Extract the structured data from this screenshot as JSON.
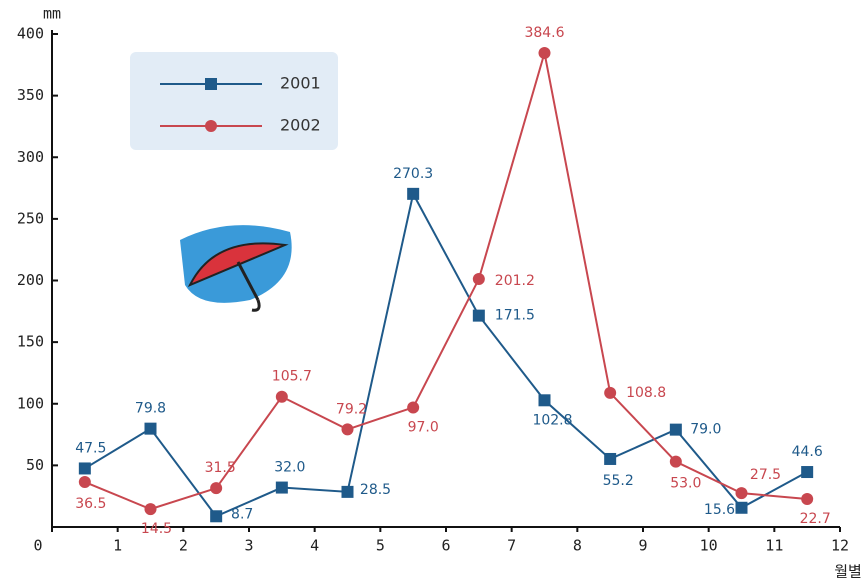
{
  "chart_data": {
    "type": "line",
    "y_unit": "mm",
    "x_label": "월별",
    "x": [
      0.5,
      1.5,
      2.5,
      3.5,
      4.5,
      5.5,
      6.5,
      7.5,
      8.5,
      9.5,
      10.5,
      11.5
    ],
    "series": [
      {
        "name": "2001",
        "color": "#1f5a8a",
        "marker": "square",
        "values": [
          47.5,
          79.8,
          8.7,
          32.0,
          28.5,
          270.3,
          171.5,
          102.8,
          55.2,
          79.0,
          15.6,
          44.6
        ],
        "value_labels": [
          "47.5",
          "79.8",
          "8.7",
          "32.0",
          "28.5",
          "270.3",
          "171.5",
          "102.8",
          "55.2",
          "79.0",
          "15.6",
          "44.6"
        ]
      },
      {
        "name": "2002",
        "color": "#c8474f",
        "marker": "circle",
        "values": [
          36.5,
          14.5,
          31.5,
          105.7,
          79.2,
          97.0,
          201.2,
          384.6,
          108.8,
          53.0,
          27.5,
          22.7
        ],
        "value_labels": [
          "36.5",
          "14.5",
          "31.5",
          "105.7",
          "79.2",
          "97.0",
          "201.2",
          "384.6",
          "108.8",
          "53.0",
          "27.5",
          "22.7"
        ]
      }
    ],
    "xlim": [
      0,
      12
    ],
    "xticks": [
      0,
      1,
      2,
      3,
      4,
      5,
      6,
      7,
      8,
      9,
      10,
      11,
      12
    ],
    "ylim": [
      0,
      400
    ],
    "yticks": [
      50,
      100,
      150,
      200,
      250,
      300,
      350,
      400
    ],
    "legend": "top-left"
  }
}
